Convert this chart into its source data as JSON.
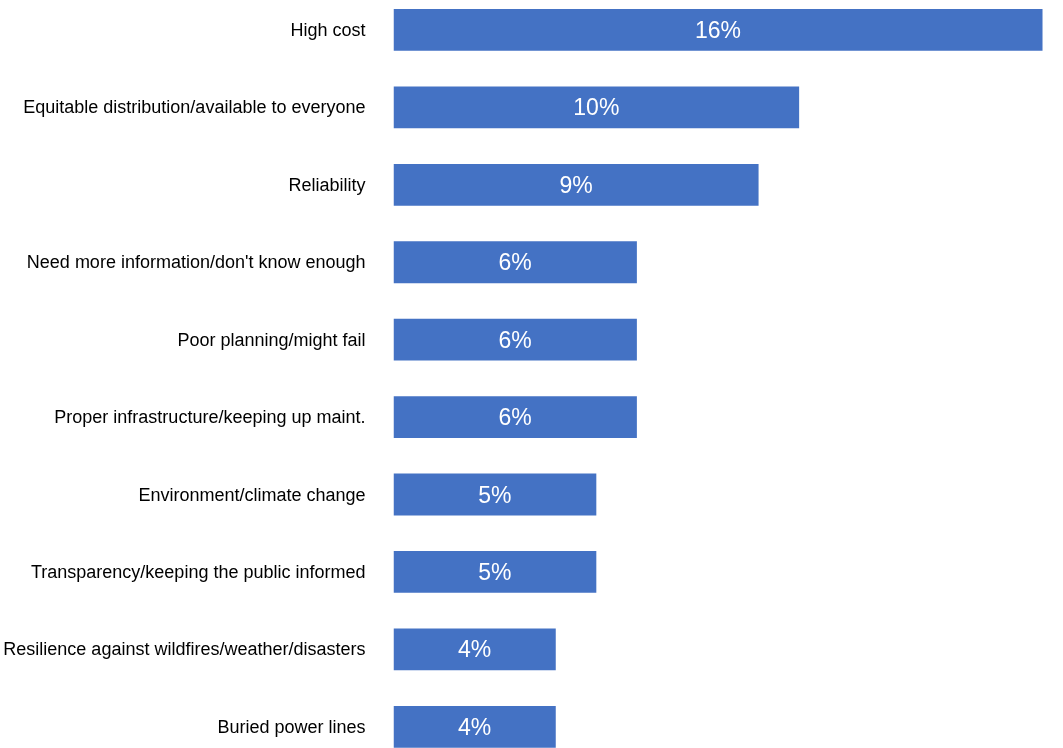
{
  "chart_data": {
    "type": "bar",
    "orientation": "horizontal",
    "tick_labels": "y",
    "categories": [
      "High cost",
      "Equitable distribution/available to everyone",
      "Reliability",
      "Need more information/don't know enough",
      "Poor planning/might fail",
      "Proper infrastructure/keeping up maint.",
      "Environment/climate change",
      "Transparency/keeping the public informed",
      "Resilience against wildfires/weather/disasters",
      "Buried power lines"
    ],
    "values": [
      16,
      10,
      9,
      6,
      6,
      6,
      5,
      5,
      4,
      4
    ],
    "value_labels": [
      "16%",
      "10%",
      "9%",
      "6%",
      "6%",
      "6%",
      "5%",
      "5%",
      "4%",
      "4%"
    ],
    "color": "#4472c4"
  }
}
